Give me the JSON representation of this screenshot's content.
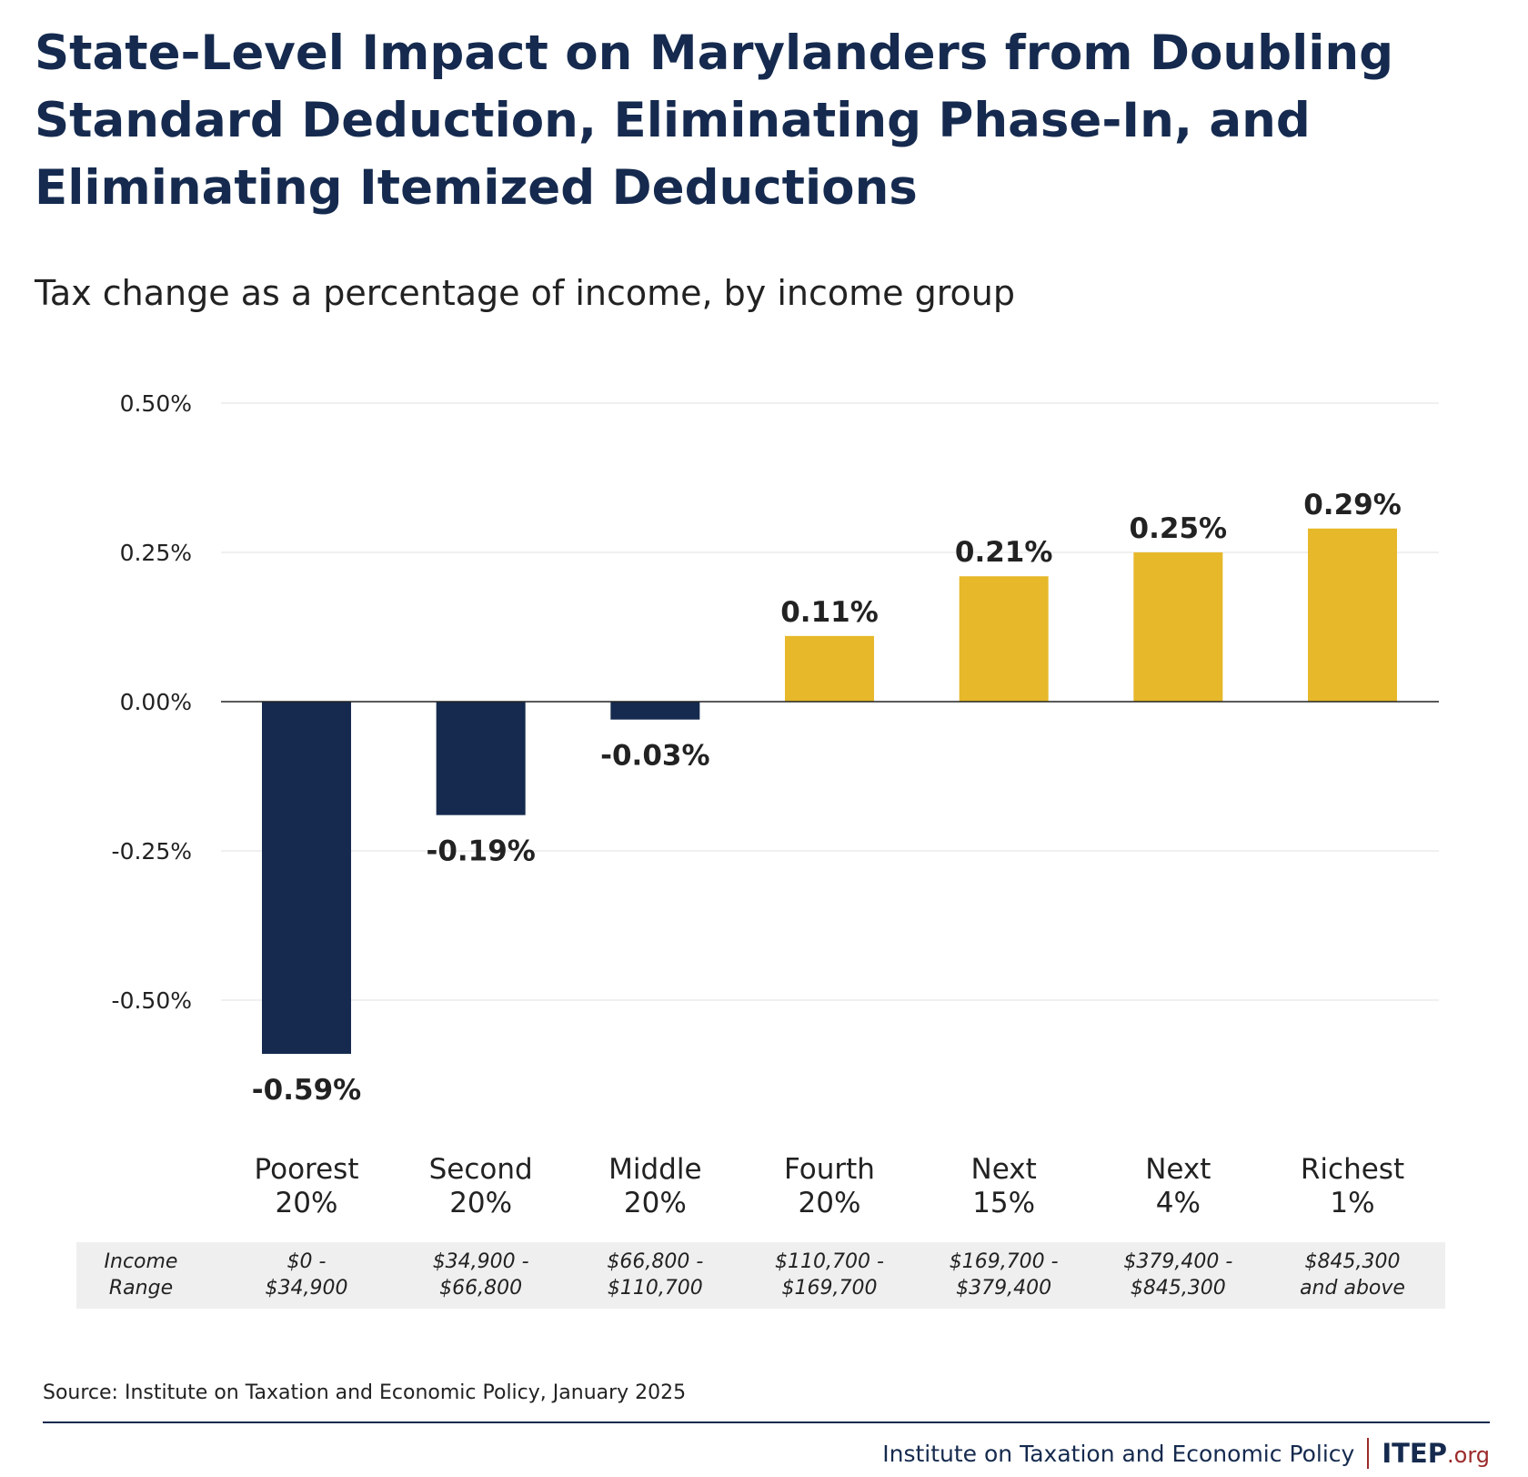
{
  "title": "State-Level Impact on Marylanders from Doubling Standard Deduction, Eliminating Phase-In, and Eliminating Itemized Deductions",
  "subtitle": "Tax change as a percentage of income, by income group",
  "chart_data": {
    "type": "bar",
    "categories": [
      [
        "Poorest",
        "20%"
      ],
      [
        "Second",
        "20%"
      ],
      [
        "Middle",
        "20%"
      ],
      [
        "Fourth",
        "20%"
      ],
      [
        "Next",
        "15%"
      ],
      [
        "Next",
        "4%"
      ],
      [
        "Richest",
        "1%"
      ]
    ],
    "values": [
      -0.59,
      -0.19,
      -0.03,
      0.11,
      0.21,
      0.25,
      0.29
    ],
    "data_labels": [
      "-0.59%",
      "-0.19%",
      "-0.03%",
      "0.11%",
      "0.21%",
      "0.25%",
      "0.29%"
    ],
    "yticks": [
      0.5,
      0.25,
      0,
      -0.25,
      -0.5
    ],
    "ytick_labels": [
      "0.50%",
      "0.25%",
      "0.00%",
      "-0.25%",
      "-0.50%"
    ],
    "ylim": [
      -0.72,
      0.5
    ],
    "grid": true,
    "colors": {
      "negative": "#152a4e",
      "positive": "#e6b82a"
    }
  },
  "income_range": {
    "label": [
      "Income",
      "Range"
    ],
    "values": [
      [
        "$0 -",
        "$34,900"
      ],
      [
        "$34,900 -",
        "$66,800"
      ],
      [
        "$66,800 -",
        "$110,700"
      ],
      [
        "$110,700 -",
        "$169,700"
      ],
      [
        "$169,700 -",
        "$379,400"
      ],
      [
        "$379,400 -",
        "$845,300"
      ],
      [
        "$845,300",
        "and above"
      ]
    ]
  },
  "source": "Source: Institute on Taxation and Economic Policy, January 2025",
  "footer": {
    "org": "Institute on Taxation and Economic Policy",
    "logo_main": "ITEP",
    "logo_suffix": ".org"
  }
}
